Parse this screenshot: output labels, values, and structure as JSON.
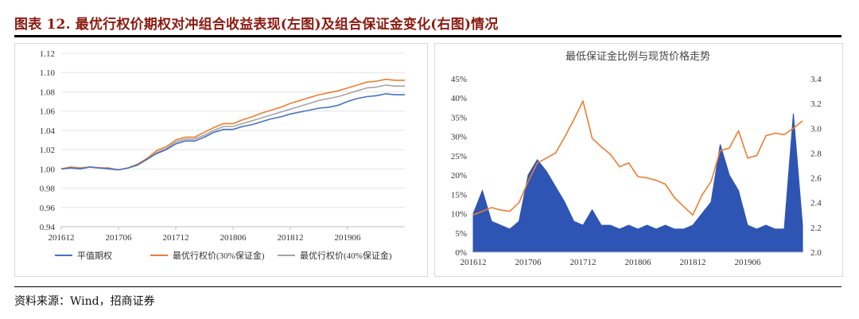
{
  "title": "图表 12. 最优行权价期权对冲组合收益表现(左图)及组合保证金变化(右图)情况",
  "source": "资料来源：Wind，招商证券",
  "colors": {
    "blue": "#4472c4",
    "orange": "#ed7d31",
    "gray": "#a5a5a5",
    "fill": "#2e55b3",
    "title_red": "#8b1a10"
  },
  "chart_data": [
    {
      "type": "line",
      "title": "",
      "xlabel": "",
      "ylabel": "",
      "x_ticks": [
        "201612",
        "201706",
        "201712",
        "201806",
        "201812",
        "201906"
      ],
      "y_ticks": [
        "0.94",
        "0.96",
        "0.98",
        "1.00",
        "1.02",
        "1.04",
        "1.06",
        "1.08",
        "1.10",
        "1.12"
      ],
      "ylim": [
        0.94,
        1.12
      ],
      "grid": true,
      "legend_position": "bottom",
      "x": [
        "201612",
        "201701",
        "201702",
        "201703",
        "201704",
        "201705",
        "201706",
        "201707",
        "201708",
        "201709",
        "201710",
        "201711",
        "201712",
        "201801",
        "201802",
        "201803",
        "201804",
        "201805",
        "201806",
        "201807",
        "201808",
        "201809",
        "201810",
        "201811",
        "201812",
        "201901",
        "201902",
        "201903",
        "201904",
        "201905",
        "201906",
        "201907",
        "201908",
        "201909",
        "201910",
        "201911",
        "201912"
      ],
      "series": [
        {
          "name": "平值期权",
          "values": [
            1.0,
            1.001,
            1.0,
            1.002,
            1.001,
            1.0,
            0.999,
            1.001,
            1.004,
            1.01,
            1.016,
            1.02,
            1.026,
            1.029,
            1.029,
            1.033,
            1.038,
            1.041,
            1.041,
            1.044,
            1.046,
            1.049,
            1.052,
            1.054,
            1.057,
            1.059,
            1.061,
            1.063,
            1.064,
            1.066,
            1.07,
            1.073,
            1.075,
            1.076,
            1.078,
            1.077,
            1.077
          ]
        },
        {
          "name": "最优行权价(30%保证金)",
          "values": [
            1.0,
            1.002,
            1.001,
            1.002,
            1.001,
            1.001,
            0.999,
            1.001,
            1.005,
            1.011,
            1.019,
            1.023,
            1.03,
            1.033,
            1.033,
            1.038,
            1.043,
            1.047,
            1.047,
            1.051,
            1.054,
            1.058,
            1.061,
            1.064,
            1.068,
            1.071,
            1.074,
            1.077,
            1.079,
            1.081,
            1.084,
            1.087,
            1.09,
            1.091,
            1.093,
            1.092,
            1.092
          ]
        },
        {
          "name": "最优行权价(40%保证金)",
          "values": [
            1.0,
            1.001,
            1.0,
            1.002,
            1.001,
            1.0,
            0.999,
            1.001,
            1.004,
            1.01,
            1.017,
            1.021,
            1.028,
            1.031,
            1.031,
            1.035,
            1.04,
            1.044,
            1.044,
            1.047,
            1.05,
            1.053,
            1.056,
            1.059,
            1.062,
            1.065,
            1.068,
            1.071,
            1.073,
            1.075,
            1.078,
            1.081,
            1.084,
            1.085,
            1.087,
            1.086,
            1.086
          ]
        }
      ]
    },
    {
      "type": "area",
      "title": "最低保证金比例与现货价格走势",
      "xlabel": "",
      "ylabel": "",
      "x_ticks": [
        "201612",
        "201706",
        "201712",
        "201806",
        "201812",
        "201906"
      ],
      "y_ticks_left": [
        "0%",
        "5%",
        "10%",
        "15%",
        "20%",
        "25%",
        "30%",
        "35%",
        "40%",
        "45%"
      ],
      "y_ticks_right": [
        "2.0",
        "2.2",
        "2.4",
        "2.6",
        "2.8",
        "3.0",
        "3.2",
        "3.4"
      ],
      "ylim_left": [
        0,
        0.45
      ],
      "ylim_right": [
        2.0,
        3.4
      ],
      "grid": false,
      "x": [
        "201612",
        "201701",
        "201702",
        "201703",
        "201704",
        "201705",
        "201706",
        "201707",
        "201708",
        "201709",
        "201710",
        "201711",
        "201712",
        "201801",
        "201802",
        "201803",
        "201804",
        "201805",
        "201806",
        "201807",
        "201808",
        "201809",
        "201810",
        "201811",
        "201812",
        "201901",
        "201902",
        "201903",
        "201904",
        "201905",
        "201906",
        "201907",
        "201908",
        "201909",
        "201910",
        "201911",
        "201912"
      ],
      "series": [
        {
          "values": [
            0.1,
            0.16,
            0.08,
            0.07,
            0.06,
            0.08,
            0.2,
            0.24,
            0.21,
            0.17,
            0.13,
            0.08,
            0.07,
            0.11,
            0.07,
            0.07,
            0.06,
            0.07,
            0.06,
            0.07,
            0.06,
            0.07,
            0.06,
            0.06,
            0.07,
            0.1,
            0.13,
            0.28,
            0.2,
            0.16,
            0.07,
            0.06,
            0.07,
            0.06,
            0.06,
            0.36,
            0.07
          ]
        },
        {
          "values": [
            2.3,
            2.33,
            2.36,
            2.34,
            2.33,
            2.4,
            2.57,
            2.72,
            2.76,
            2.8,
            2.93,
            3.07,
            3.22,
            2.92,
            2.85,
            2.79,
            2.69,
            2.72,
            2.61,
            2.6,
            2.58,
            2.55,
            2.44,
            2.37,
            2.3,
            2.46,
            2.57,
            2.82,
            2.84,
            2.98,
            2.76,
            2.78,
            2.94,
            2.96,
            2.95,
            3.0,
            3.06
          ]
        }
      ]
    }
  ],
  "left_legend": [
    "平值期权",
    "最优行权价(30%保证金)",
    "最优行权价(40%保证金)"
  ]
}
